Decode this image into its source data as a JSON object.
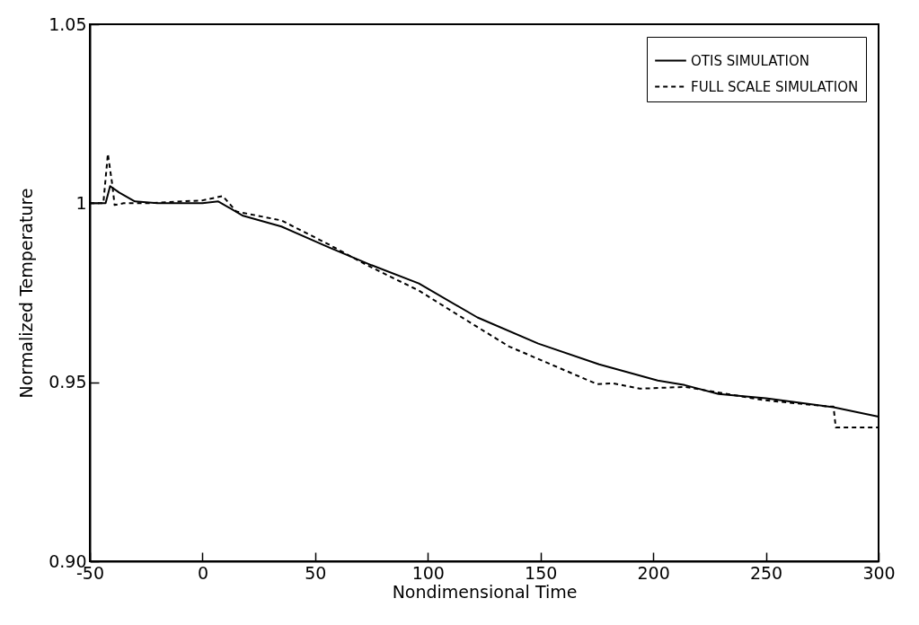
{
  "chart_data": {
    "type": "line",
    "xlabel": "Nondimensional Time",
    "ylabel": "Normalized Temperature",
    "xlim": [
      -50,
      300
    ],
    "ylim": [
      0.9,
      1.05
    ],
    "xticks": [
      -50,
      0,
      50,
      100,
      150,
      200,
      250,
      300
    ],
    "yticks": [
      {
        "value": 0.9,
        "label": "0.90"
      },
      0.95,
      1,
      1.05
    ],
    "legend": "top right",
    "grid": false,
    "series": [
      {
        "name": "OTIS SIMULATION",
        "color": "#000000",
        "line_style": "solid",
        "x": [
          -50,
          -43,
          -41,
          -37,
          -30,
          -20,
          0,
          7,
          18,
          35,
          56,
          75,
          96,
          122,
          149,
          176,
          202,
          214,
          229,
          250,
          280,
          300
        ],
        "values": [
          1.0,
          1.0,
          1.0048,
          1.003,
          1.0005,
          1.0,
          1.0,
          1.0005,
          0.9965,
          0.9935,
          0.9877,
          0.9827,
          0.9776,
          0.9681,
          0.9608,
          0.955,
          0.9505,
          0.9492,
          0.9467,
          0.9455,
          0.943,
          0.9404
        ]
      },
      {
        "name": "FULL SCALE SIMULATION",
        "color": "#000000",
        "line_style": "dashed",
        "x": [
          -50,
          -44,
          -42,
          -40,
          -39,
          -35,
          -25,
          0,
          9,
          15,
          35,
          56,
          73,
          96,
          121,
          136,
          162,
          175,
          182,
          194,
          214,
          249,
          278,
          280,
          281,
          300
        ],
        "values": [
          1.0,
          1.0,
          1.0138,
          1.005,
          0.9995,
          1.0,
          1.0,
          1.0008,
          1.002,
          0.9977,
          0.9952,
          0.9885,
          0.9827,
          0.9756,
          0.9658,
          0.96,
          0.953,
          0.9495,
          0.9497,
          0.9482,
          0.9487,
          0.945,
          0.9432,
          0.9432,
          0.9374,
          0.9374
        ]
      }
    ]
  }
}
